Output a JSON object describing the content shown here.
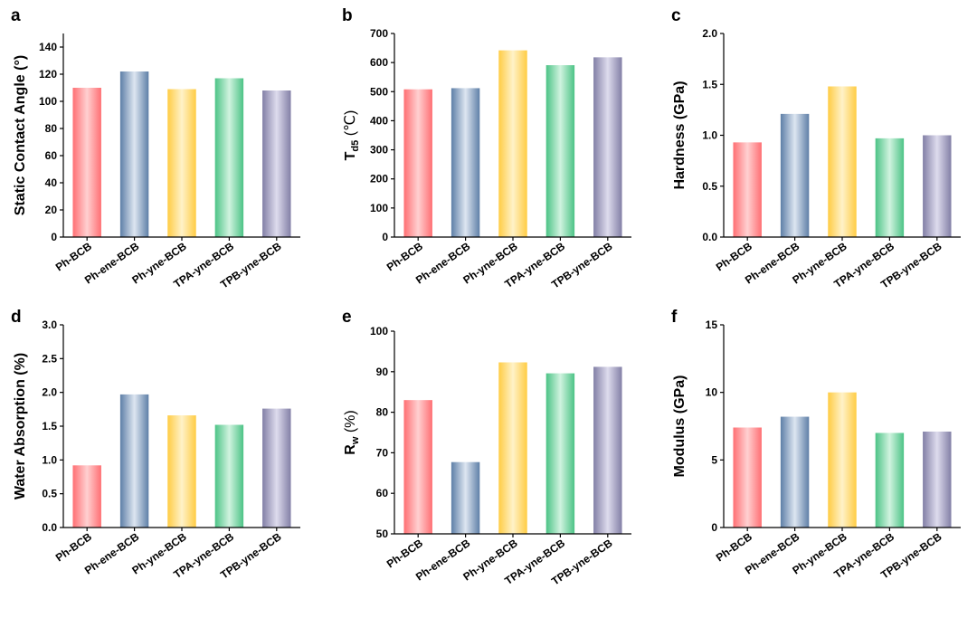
{
  "figure": {
    "colors": {
      "Ph-BCB": [
        "#ff6f73",
        "#ffd0d1"
      ],
      "Ph-ene-BCB": [
        "#5e7fa7",
        "#dde6f1"
      ],
      "Ph-yne-BCB": [
        "#ffcc44",
        "#fff2c8"
      ],
      "TPA-yne-BCB": [
        "#4cc386",
        "#d0f3df"
      ],
      "TPB-yne-BCB": [
        "#827fa6",
        "#dedced"
      ]
    }
  },
  "chart_data": [
    {
      "panel": "a",
      "type": "bar",
      "title": "",
      "ylabel": "Static Contact Angle (°)",
      "xlabel": "",
      "categories": [
        "Ph-BCB",
        "Ph-ene-BCB",
        "Ph-yne-BCB",
        "TPA-yne-BCB",
        "TPB-yne-BCB"
      ],
      "values": [
        110,
        122,
        109,
        117,
        108
      ],
      "ylim": [
        0,
        150
      ],
      "yticks": [
        0,
        20,
        40,
        60,
        80,
        100,
        120,
        140
      ],
      "ytick_labels": [
        "0",
        "20",
        "40",
        "60",
        "80",
        "100",
        "120",
        "140"
      ]
    },
    {
      "panel": "b",
      "type": "bar",
      "title": "",
      "ylabel": "Td5 (℃)",
      "ylabel_main": "T",
      "ylabel_sub": "d5",
      "ylabel_unit": " (℃)",
      "xlabel": "",
      "categories": [
        "Ph-BCB",
        "Ph-ene-BCB",
        "Ph-yne-BCB",
        "TPA-yne-BCB",
        "TPB-yne-BCB"
      ],
      "values": [
        508,
        512,
        642,
        591,
        618
      ],
      "ylim": [
        0,
        700
      ],
      "yticks": [
        0,
        100,
        200,
        300,
        400,
        500,
        600,
        700
      ],
      "ytick_labels": [
        "0",
        "100",
        "200",
        "300",
        "400",
        "500",
        "600",
        "700"
      ]
    },
    {
      "panel": "c",
      "type": "bar",
      "title": "",
      "ylabel": "Hardness (GPa)",
      "xlabel": "",
      "categories": [
        "Ph-BCB",
        "Ph-ene-BCB",
        "Ph-yne-BCB",
        "TPA-yne-BCB",
        "TPB-yne-BCB"
      ],
      "values": [
        0.93,
        1.21,
        1.48,
        0.97,
        1.0
      ],
      "ylim": [
        0,
        2.0
      ],
      "yticks": [
        0,
        0.5,
        1.0,
        1.5,
        2.0
      ],
      "ytick_labels": [
        "0.0",
        "0.5",
        "1.0",
        "1.5",
        "2.0"
      ]
    },
    {
      "panel": "d",
      "type": "bar",
      "title": "",
      "ylabel": "Water Absorption (%)",
      "xlabel": "",
      "categories": [
        "Ph-BCB",
        "Ph-ene-BCB",
        "Ph-yne-BCB",
        "TPA-yne-BCB",
        "TPB-yne-BCB"
      ],
      "values": [
        0.92,
        1.97,
        1.66,
        1.52,
        1.76
      ],
      "ylim": [
        0,
        3.0
      ],
      "yticks": [
        0,
        0.5,
        1.0,
        1.5,
        2.0,
        2.5,
        3.0
      ],
      "ytick_labels": [
        "0.0",
        "0.5",
        "1.0",
        "1.5",
        "2.0",
        "2.5",
        "3.0"
      ]
    },
    {
      "panel": "e",
      "type": "bar",
      "title": "",
      "ylabel": "Rw (%)",
      "ylabel_main": "R",
      "ylabel_sub": "w",
      "ylabel_unit": " (%)",
      "xlabel": "",
      "categories": [
        "Ph-BCB",
        "Ph-ene-BCB",
        "Ph-yne-BCB",
        "TPA-yne-BCB",
        "TPB-yne-BCB"
      ],
      "values": [
        83.0,
        67.7,
        92.3,
        89.6,
        91.2
      ],
      "ylim": [
        50,
        100
      ],
      "yticks": [
        50,
        60,
        70,
        80,
        90,
        100
      ],
      "ytick_labels": [
        "50",
        "60",
        "70",
        "80",
        "90",
        "100"
      ]
    },
    {
      "panel": "f",
      "type": "bar",
      "title": "",
      "ylabel": "Modulus (GPa)",
      "xlabel": "",
      "categories": [
        "Ph-BCB",
        "Ph-ene-BCB",
        "Ph-yne-BCB",
        "TPA-yne-BCB",
        "TPB-yne-BCB"
      ],
      "values": [
        7.4,
        8.2,
        10.0,
        7.0,
        7.1
      ],
      "ylim": [
        0,
        15
      ],
      "yticks": [
        0,
        5,
        10,
        15
      ],
      "ytick_labels": [
        "0",
        "5",
        "10",
        "15"
      ]
    }
  ]
}
